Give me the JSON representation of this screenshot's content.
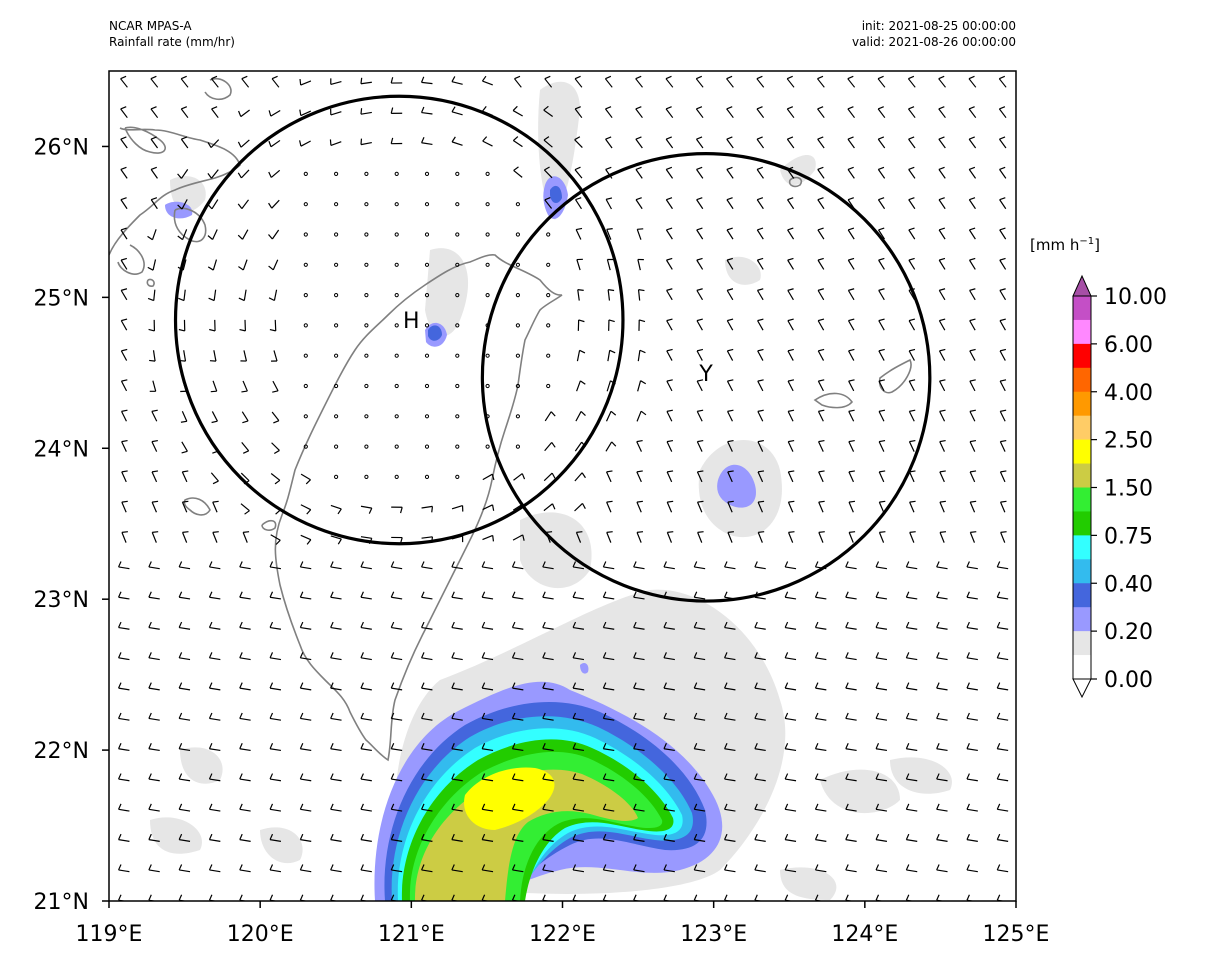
{
  "header": {
    "model": "NCAR MPAS-A",
    "variable": "Rainfall rate (mm/hr)",
    "init": "init: 2021-08-25 00:00:00",
    "valid": "valid: 2021-08-26 00:00:00"
  },
  "axes": {
    "lon_ticks": [
      "119°E",
      "120°E",
      "121°E",
      "122°E",
      "123°E",
      "124°E",
      "125°E"
    ],
    "lat_ticks": [
      "21°N",
      "22°N",
      "23°N",
      "24°N",
      "25°N",
      "26°N"
    ],
    "lon_range": [
      119,
      125
    ],
    "lat_range": [
      21,
      26.5
    ]
  },
  "markers": [
    {
      "label": "H",
      "lon": 121.0,
      "lat": 24.85
    },
    {
      "label": "Y",
      "lon": 122.95,
      "lat": 24.5
    }
  ],
  "circles": [
    {
      "center_lon": 120.92,
      "center_lat": 24.85,
      "radius_deg": 1.48
    },
    {
      "center_lon": 122.95,
      "center_lat": 24.47,
      "radius_deg": 1.48
    }
  ],
  "colorbar": {
    "unit_prefix": "[mm h",
    "unit_exp": "−1",
    "unit_suffix": "]",
    "labels": [
      "10.00",
      "6.00",
      "4.00",
      "2.50",
      "1.50",
      "0.75",
      "0.40",
      "0.20",
      "0.00"
    ],
    "colors": [
      "#c44fc6",
      "#ff88ff",
      "#ff0000",
      "#ff6600",
      "#ff9900",
      "#ffcc66",
      "#ffff00",
      "#cccc44",
      "#33ee33",
      "#22cc00",
      "#33ffff",
      "#33bbee",
      "#4466dd",
      "#9999ff",
      "#e6e6e6",
      "#ffffff"
    ]
  },
  "chart_data": {
    "type": "heatmap",
    "title": "Rainfall rate (mm/hr)",
    "xlabel": "",
    "ylabel": "",
    "xlim": [
      119,
      125
    ],
    "ylim": [
      21,
      26.5
    ],
    "levels": [
      0.0,
      0.1,
      0.2,
      0.3,
      0.4,
      0.5,
      0.75,
      1.0,
      1.5,
      2.0,
      2.5,
      3.0,
      4.0,
      5.0,
      6.0,
      8.0,
      10.0
    ],
    "rain_cells": [
      {
        "lon": 121.8,
        "lat": 21.6,
        "peak": 2.5
      },
      {
        "lon": 123.1,
        "lat": 23.8,
        "peak": 0.2
      },
      {
        "lon": 120.85,
        "lat": 24.75,
        "peak": 0.3
      },
      {
        "lon": 121.95,
        "lat": 25.7,
        "peak": 0.3
      },
      {
        "lon": 119.45,
        "lat": 25.6,
        "peak": 0.3
      }
    ]
  }
}
